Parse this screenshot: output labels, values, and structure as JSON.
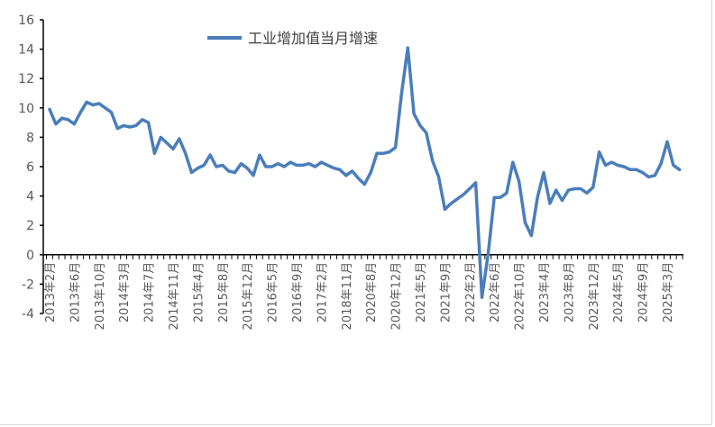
{
  "chart_data": {
    "type": "line",
    "title": "",
    "xlabel": "",
    "ylabel": "",
    "ylim": [
      -4,
      16
    ],
    "yticks": [
      -4,
      -2,
      0,
      2,
      4,
      6,
      8,
      10,
      12,
      14,
      16
    ],
    "grid": false,
    "legend_position": "top-center",
    "color": "#4a7ebb",
    "x_tick_labels": [
      "2013年2月",
      "2013年6月",
      "2013年10月",
      "2014年3月",
      "2014年7月",
      "2014年11月",
      "2015年4月",
      "2015年8月",
      "2015年12月",
      "2016年5月",
      "2016年9月",
      "2017年2月",
      "2018年11月",
      "2020年8月",
      "2020年12月",
      "2021年5月",
      "2021年9月",
      "2022年2月",
      "2022年6月",
      "2022年10月",
      "2023年4月",
      "2023年8月",
      "2023年12月",
      "2024年5月",
      "2024年9月",
      "2025年3月"
    ],
    "label_every": 4,
    "series": [
      {
        "name": "工业增加值当月增速",
        "values": [
          9.9,
          8.9,
          9.3,
          9.2,
          8.9,
          9.7,
          10.4,
          10.2,
          10.3,
          10.0,
          9.7,
          8.6,
          8.8,
          8.7,
          8.8,
          9.2,
          9.0,
          6.9,
          8.0,
          7.6,
          7.2,
          7.9,
          6.9,
          5.6,
          5.9,
          6.1,
          6.8,
          6.0,
          6.1,
          5.7,
          5.6,
          6.2,
          5.9,
          5.4,
          6.8,
          6.0,
          6.0,
          6.2,
          6.0,
          6.3,
          6.1,
          6.1,
          6.2,
          6.0,
          6.3,
          6.1,
          5.9,
          5.8,
          5.4,
          5.7,
          5.2,
          4.8,
          5.6,
          6.9,
          6.9,
          7.0,
          7.3,
          11.0,
          14.1,
          9.6,
          8.8,
          8.3,
          6.4,
          5.3,
          3.1,
          3.5,
          3.8,
          4.1,
          4.5,
          4.9,
          -2.9,
          0.0,
          3.9,
          3.9,
          4.2,
          6.3,
          5.0,
          2.2,
          1.3,
          3.9,
          5.6,
          3.5,
          4.4,
          3.7,
          4.4,
          4.5,
          4.5,
          4.2,
          4.6,
          7.0,
          6.1,
          6.3,
          6.1,
          6.0,
          5.8,
          5.8,
          5.6,
          5.3,
          5.4,
          6.2,
          7.7,
          6.1,
          5.8
        ]
      }
    ]
  }
}
